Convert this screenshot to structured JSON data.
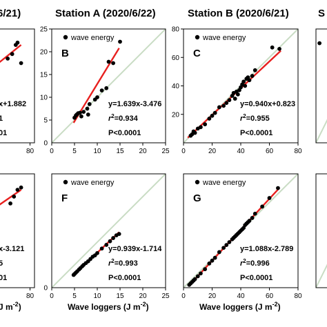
{
  "titles": {
    "left": "6/21)",
    "a": "Station A (2020/6/22)",
    "b": "Station B (2020/6/21)",
    "right": "S"
  },
  "x_axis_label": {
    "left": "J m",
    "mid": "Wave loggers (J m",
    "right": "Wave loggers (J m",
    "superscript": "-2",
    "close": ")"
  },
  "chart_data": [
    {
      "type": "scatter",
      "panel": "partial-left-top",
      "xlim": [
        0,
        85
      ],
      "ylim": [
        0,
        25
      ],
      "xticks": [
        {
          "v": 80,
          "label": "80"
        }
      ],
      "legend": "",
      "series": [
        {
          "x": [
            55,
            60,
            64,
            66,
            70
          ],
          "y": [
            18.5,
            19.5,
            21.5,
            22,
            17.5
          ]
        }
      ],
      "fit": {
        "x": [
          0,
          70
        ],
        "y": [
          10.5,
          21.5
        ]
      },
      "stats": {
        "eq": "x+1.882",
        "r2_line": "1",
        "p": "01"
      }
    },
    {
      "type": "scatter",
      "panel": "B",
      "letter": "B",
      "xlim": [
        0,
        25
      ],
      "ylim": [
        0,
        25
      ],
      "xticks": [
        {
          "v": 0,
          "label": "0"
        },
        {
          "v": 5,
          "label": "5"
        },
        {
          "v": 10,
          "label": "10"
        },
        {
          "v": 15,
          "label": "15"
        },
        {
          "v": 20,
          "label": "20"
        },
        {
          "v": 25,
          "label": "25"
        }
      ],
      "yticks": [
        {
          "v": 5,
          "label": "5"
        },
        {
          "v": 10,
          "label": "10"
        },
        {
          "v": 15,
          "label": "15"
        },
        {
          "v": 20,
          "label": "20"
        },
        {
          "v": 25,
          "label": "25"
        }
      ],
      "legend": "wave energy",
      "series": [
        {
          "name": "wave energy",
          "x": [
            5.0,
            5.3,
            5.5,
            5.8,
            6.2,
            6.5,
            7.0,
            7.8,
            8.0,
            8.3,
            9.5,
            10.0,
            11.0,
            12.0,
            12.5,
            13.5,
            15.0
          ],
          "y": [
            5.5,
            6.0,
            6.2,
            6.5,
            6.6,
            5.8,
            6.8,
            7.5,
            6.2,
            8.5,
            9.5,
            10.0,
            11.5,
            12.0,
            17.8,
            17.5,
            22.2
          ]
        }
      ],
      "fit": {
        "x": [
          4.8,
          14.8
        ],
        "y": [
          4.4,
          20.8
        ]
      },
      "stats": {
        "eq": "y=1.639x-3.476",
        "r2": "0.934",
        "p": "P<0.0001"
      }
    },
    {
      "type": "scatter",
      "panel": "C",
      "letter": "C",
      "xlim": [
        0,
        80
      ],
      "ylim": [
        0,
        80
      ],
      "xticks": [
        {
          "v": 0,
          "label": "0"
        },
        {
          "v": 20,
          "label": "20"
        },
        {
          "v": 40,
          "label": "40"
        },
        {
          "v": 60,
          "label": "60"
        },
        {
          "v": 80,
          "label": "80"
        }
      ],
      "yticks": [
        {
          "v": 20,
          "label": "20"
        },
        {
          "v": 40,
          "label": "40"
        },
        {
          "v": 60,
          "label": "60"
        },
        {
          "v": 80,
          "label": "80"
        }
      ],
      "legend": "wave energy",
      "series": [
        {
          "name": "wave energy",
          "x": [
            5,
            6,
            7,
            8,
            10,
            12,
            15,
            18,
            20,
            22,
            25,
            28,
            30,
            32,
            34,
            35,
            36,
            37,
            38,
            39,
            40,
            41,
            42,
            43,
            44,
            45,
            46,
            48,
            50,
            62,
            67
          ],
          "y": [
            5,
            6,
            8,
            7,
            10,
            11,
            13,
            17,
            19,
            21,
            25,
            26,
            28,
            30,
            33,
            35,
            31,
            36,
            34,
            37,
            39,
            41,
            43,
            40,
            45,
            46,
            44,
            47,
            51,
            67,
            66
          ]
        }
      ],
      "fit": {
        "x": [
          3,
          68
        ],
        "y": [
          3.6,
          64.7
        ]
      },
      "stats": {
        "eq": "y=0.940x+0.823",
        "r2": "0.955",
        "p": "P<0.0001"
      }
    },
    {
      "type": "scatter",
      "panel": "partial-right-top",
      "xlim": [
        0,
        80
      ],
      "ylim": [
        0,
        80
      ],
      "legend": "",
      "series": [
        {
          "x": [
            5
          ],
          "y": [
            70
          ]
        }
      ]
    },
    {
      "type": "scatter",
      "panel": "partial-left-bottom",
      "xlim": [
        0,
        85
      ],
      "ylim": [
        0,
        25
      ],
      "xticks": [
        {
          "v": 80,
          "label": "80"
        }
      ],
      "legend": "",
      "series": [
        {
          "x": [
            58,
            62,
            66,
            70
          ],
          "y": [
            18.5,
            20,
            21.5,
            22
          ]
        }
      ],
      "fit": {
        "x": [
          0,
          70
        ],
        "y": [
          12,
          21.5
        ]
      },
      "stats": {
        "eq": "x-3.121",
        "r2_line": "5",
        "p": "01"
      }
    },
    {
      "type": "scatter",
      "panel": "F",
      "letter": "F",
      "xlim": [
        0,
        25
      ],
      "ylim": [
        0,
        25
      ],
      "xticks": [
        {
          "v": 0,
          "label": "0"
        },
        {
          "v": 5,
          "label": "5"
        },
        {
          "v": 10,
          "label": "10"
        },
        {
          "v": 15,
          "label": "15"
        },
        {
          "v": 20,
          "label": "20"
        },
        {
          "v": 25,
          "label": "25"
        }
      ],
      "yticks": [],
      "legend": "wave energy",
      "series": [
        {
          "name": "wave energy",
          "x": [
            4.8,
            5.0,
            5.3,
            5.6,
            6.0,
            6.3,
            6.7,
            7.0,
            7.5,
            8.0,
            8.5,
            9.0,
            9.5,
            10.0,
            11.0,
            12.0,
            12.8,
            13.5,
            14.2,
            14.8
          ],
          "y": [
            2.8,
            3.0,
            3.3,
            3.6,
            4.0,
            4.3,
            4.7,
            5.0,
            5.4,
            5.8,
            6.3,
            6.8,
            7.1,
            7.6,
            8.6,
            9.4,
            10.2,
            10.9,
            11.5,
            11.8
          ]
        }
      ],
      "fit": {
        "x": [
          4.8,
          14.8
        ],
        "y": [
          2.8,
          12.2
        ]
      },
      "stats": {
        "eq": "y=0.939x-1.714",
        "r2": "0.993",
        "p": "P<0.0001"
      }
    },
    {
      "type": "scatter",
      "panel": "G",
      "letter": "G",
      "xlim": [
        0,
        80
      ],
      "ylim": [
        0,
        80
      ],
      "xticks": [
        {
          "v": 0,
          "label": "0"
        },
        {
          "v": 20,
          "label": "20"
        },
        {
          "v": 40,
          "label": "40"
        },
        {
          "v": 60,
          "label": "60"
        },
        {
          "v": 80,
          "label": "80"
        }
      ],
      "yticks": [],
      "legend": "wave energy",
      "series": [
        {
          "name": "wave energy",
          "x": [
            4,
            5,
            6,
            7,
            8,
            10,
            12,
            15,
            18,
            20,
            22,
            25,
            28,
            30,
            32,
            34,
            35,
            36,
            37,
            38,
            39,
            40,
            41,
            42,
            43,
            44,
            45,
            46,
            48,
            50,
            55,
            60,
            66
          ],
          "y": [
            2,
            3,
            4,
            5,
            6,
            8,
            10,
            13,
            17,
            19,
            21,
            25,
            28,
            30,
            32,
            34,
            35,
            36,
            37,
            38,
            39,
            40,
            41,
            42,
            44,
            45,
            46,
            47,
            49,
            52,
            57,
            63,
            70
          ]
        }
      ],
      "fit": {
        "x": [
          4,
          67
        ],
        "y": [
          1.6,
          70.1
        ]
      },
      "stats": {
        "eq": "y=1.088x-2.789",
        "r2": "0.996",
        "p": "P<0.0001"
      }
    },
    {
      "type": "scatter",
      "panel": "partial-right-bottom",
      "xlim": [
        0,
        80
      ],
      "ylim": [
        0,
        80
      ],
      "legend": "",
      "series": []
    }
  ],
  "colors": {
    "fit": "#e8201f",
    "diagonal": "#c9dcc4",
    "points": "#000000",
    "axis": "#000000"
  }
}
